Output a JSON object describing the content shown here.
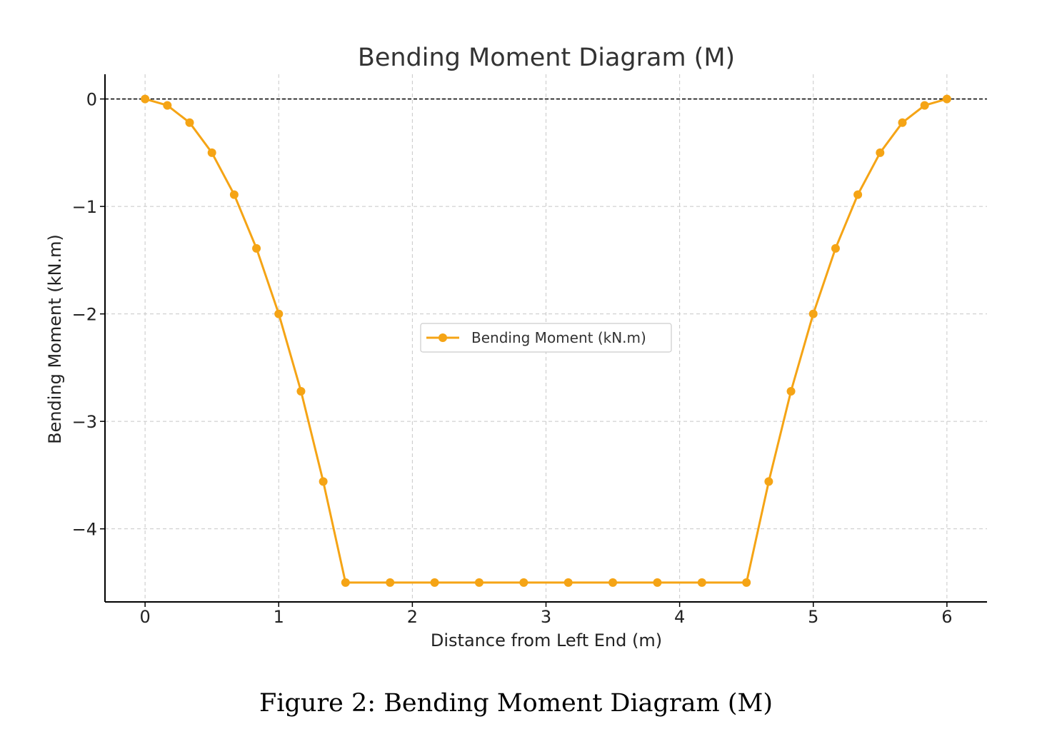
{
  "chart_data": {
    "type": "line",
    "title": "Bending Moment Diagram (M)",
    "xlabel": "Distance from Left End (m)",
    "ylabel": "Bending Moment (kN.m)",
    "xlim": [
      -0.3,
      6.3
    ],
    "ylim": [
      -4.68,
      0.23
    ],
    "xticks": [
      0,
      1,
      2,
      3,
      4,
      5,
      6
    ],
    "yticks": [
      0,
      -1,
      -2,
      -3,
      -4
    ],
    "xtick_labels": [
      "0",
      "1",
      "2",
      "3",
      "4",
      "5",
      "6"
    ],
    "ytick_labels": [
      "0",
      "−1",
      "−2",
      "−3",
      "−4"
    ],
    "grid": true,
    "legend_position": "center",
    "reference_line": {
      "y": 0,
      "style": "dashed",
      "color": "#000000"
    },
    "series": [
      {
        "name": "Bending Moment (kN.m)",
        "color": "#F5A415",
        "marker": "circle",
        "x": [
          0,
          0.1667,
          0.3333,
          0.5,
          0.6667,
          0.8333,
          1.0,
          1.1667,
          1.3333,
          1.5,
          1.8333,
          2.1667,
          2.5,
          2.8333,
          3.1667,
          3.5,
          3.8333,
          4.1667,
          4.5,
          4.6667,
          4.8333,
          5.0,
          5.1667,
          5.3333,
          5.5,
          5.6667,
          5.8333,
          6.0
        ],
        "y": [
          0,
          -0.06,
          -0.22,
          -0.5,
          -0.89,
          -1.39,
          -2.0,
          -2.72,
          -3.56,
          -4.5,
          -4.5,
          -4.5,
          -4.5,
          -4.5,
          -4.5,
          -4.5,
          -4.5,
          -4.5,
          -4.5,
          -3.56,
          -2.72,
          -2.0,
          -1.39,
          -0.89,
          -0.5,
          -0.22,
          -0.06,
          0
        ]
      }
    ]
  },
  "caption": "Figure 2: Bending Moment Diagram (M)"
}
